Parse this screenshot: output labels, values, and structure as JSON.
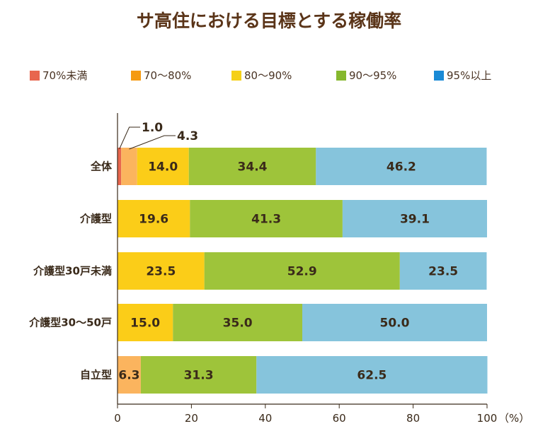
{
  "chart_data": {
    "type": "bar",
    "orientation": "horizontal",
    "stacked": true,
    "title": "サ高住における目標とする稼働率",
    "categories": [
      "全体",
      "介護型",
      "介護型30戸未満",
      "介護型30～50戸",
      "自立型"
    ],
    "series": [
      {
        "name": "70%未満",
        "color": "#e8664e",
        "values": [
          1.0,
          0,
          0,
          0,
          0
        ]
      },
      {
        "name": "70～80%",
        "color": "#fbb45e",
        "values": [
          4.3,
          0,
          0,
          0,
          6.3
        ]
      },
      {
        "name": "80～90%",
        "color": "#fbcd18",
        "values": [
          14.0,
          19.6,
          23.5,
          15.0,
          0
        ]
      },
      {
        "name": "90～95%",
        "color": "#9ec43a",
        "values": [
          34.4,
          41.3,
          52.9,
          35.0,
          31.3
        ]
      },
      {
        "name": "95%以上",
        "color": "#86c4dc",
        "values": [
          46.2,
          39.1,
          23.5,
          50.0,
          62.5
        ]
      }
    ],
    "legend_colors": [
      "#e8664e",
      "#f59a12",
      "#f5d018",
      "#86b82e",
      "#1a8ad6"
    ],
    "data_labels": [
      [
        "1.0",
        "4.3",
        "14.0",
        "34.4",
        "46.2"
      ],
      [
        "",
        "",
        "19.6",
        "41.3",
        "39.1"
      ],
      [
        "",
        "",
        "23.5",
        "52.9",
        "23.5"
      ],
      [
        "",
        "",
        "15.0",
        "35.0",
        "50.0"
      ],
      [
        "",
        "6.3",
        "",
        "31.3",
        "62.5"
      ]
    ],
    "xlim": [
      0,
      100
    ],
    "xticks": [
      0,
      20,
      40,
      60,
      80,
      100
    ],
    "xlabel": "（%）",
    "legend_position": "top",
    "grid": false
  }
}
